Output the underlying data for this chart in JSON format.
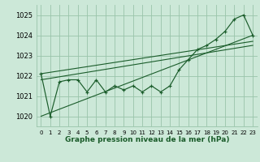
{
  "title": "Graphe pression niveau de la mer (hPa)",
  "bg_color": "#cce8d8",
  "grid_color": "#99c4aa",
  "line_color": "#1a5c2a",
  "ylim": [
    1019.5,
    1025.5
  ],
  "xlim": [
    -0.5,
    23.5
  ],
  "yticks": [
    1020,
    1021,
    1022,
    1023,
    1024,
    1025
  ],
  "xtick_labels": [
    "0",
    "1",
    "2",
    "3",
    "4",
    "5",
    "6",
    "7",
    "8",
    "9",
    "10",
    "11",
    "12",
    "13",
    "14",
    "15",
    "16",
    "17",
    "18",
    "19",
    "20",
    "21",
    "22",
    "23"
  ],
  "pressure_data": [
    1022.1,
    1020.0,
    1021.7,
    1021.8,
    1021.8,
    1021.2,
    1021.8,
    1021.2,
    1021.5,
    1021.3,
    1021.5,
    1021.2,
    1021.5,
    1021.2,
    1021.5,
    1022.3,
    1022.8,
    1023.3,
    1023.5,
    1023.8,
    1024.2,
    1024.8,
    1025.0,
    1024.0
  ],
  "trend_lines": [
    [
      0,
      1020.0,
      23,
      1024.0
    ],
    [
      0,
      1021.8,
      23,
      1023.5
    ],
    [
      0,
      1022.1,
      23,
      1023.7
    ]
  ]
}
